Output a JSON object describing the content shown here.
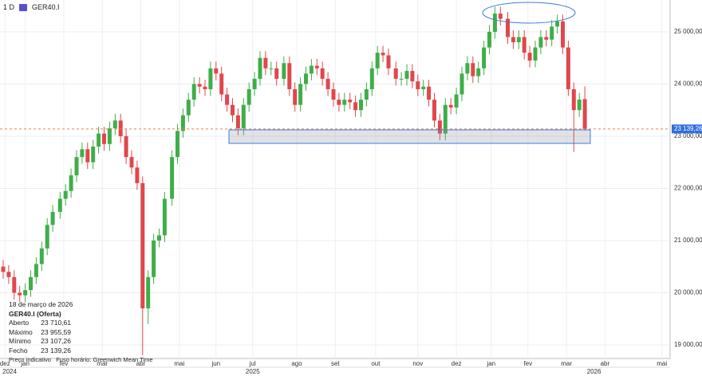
{
  "header": {
    "interval": "1 D",
    "symbol": "GER40.I"
  },
  "info_panel": {
    "date": "18 de março de 2026",
    "title": "GER40.I (Oferta)",
    "rows": [
      {
        "name": "Aberto",
        "label": "23 710,61"
      },
      {
        "name": "Máximo",
        "label": "23 955,59"
      },
      {
        "name": "Mínimo",
        "label": "23 107,26"
      },
      {
        "name": "Fecho",
        "label": "23 139,26"
      }
    ],
    "footer_left": "Preço indicativo",
    "footer_right": "Fuso horário: Greenwich Mean Time"
  },
  "chart_data": {
    "type": "candlestick",
    "up_color": "#3fae49",
    "down_color": "#e0474c",
    "x": [
      0,
      3,
      6,
      9,
      12,
      15,
      18,
      21,
      24,
      27,
      31,
      34,
      37,
      40,
      43,
      46,
      49,
      52,
      55,
      58,
      61,
      64,
      67,
      70,
      73,
      76,
      79,
      82,
      85,
      88,
      92,
      95,
      98,
      101,
      104,
      107,
      110,
      113,
      116,
      119,
      122,
      125,
      128,
      131,
      134,
      137,
      140,
      143,
      146,
      149,
      153,
      156,
      159,
      162,
      165,
      168,
      171,
      174,
      177,
      180,
      183,
      186,
      189,
      192,
      195,
      198,
      201,
      204,
      207,
      210,
      214,
      217,
      220,
      223,
      226,
      229,
      232,
      235,
      238,
      241,
      244,
      247,
      250,
      253,
      256,
      259,
      262,
      265,
      268,
      271,
      275,
      278,
      281,
      284,
      287,
      290,
      293,
      296,
      299,
      302,
      305,
      308,
      311,
      314,
      317
    ],
    "open": [
      20500,
      20400,
      20300,
      20000,
      19950,
      20050,
      20300,
      20550,
      20850,
      21300,
      21550,
      21800,
      21950,
      22250,
      22600,
      22750,
      22500,
      22800,
      23050,
      22850,
      23150,
      23300,
      23000,
      22600,
      22400,
      22100,
      19700,
      20300,
      21000,
      21100,
      21800,
      22600,
      23100,
      23400,
      23700,
      24000,
      23950,
      23900,
      24300,
      24200,
      23800,
      23600,
      23400,
      23150,
      23600,
      23900,
      24100,
      24500,
      24300,
      24300,
      24100,
      24400,
      23900,
      23600,
      24000,
      24200,
      24350,
      24300,
      24100,
      23900,
      23700,
      23600,
      23700,
      23650,
      23500,
      23700,
      23900,
      24300,
      24600,
      24550,
      24300,
      24100,
      24100,
      24250,
      24050,
      23900,
      23950,
      23700,
      23300,
      23050,
      23600,
      23550,
      23800,
      24200,
      24400,
      24150,
      24300,
      24700,
      25000,
      25350,
      25250,
      24900,
      24800,
      24900,
      24600,
      24450,
      24700,
      24900,
      24850,
      25100,
      25200,
      24700,
      23900,
      23500,
      23710.61
    ],
    "high": [
      20630,
      20530,
      20430,
      20130,
      20180,
      20430,
      20680,
      20980,
      21430,
      21680,
      21930,
      22080,
      22380,
      22730,
      22880,
      22880,
      22930,
      23180,
      23180,
      23280,
      23430,
      23430,
      23130,
      22730,
      22530,
      22230,
      20430,
      21130,
      21230,
      21930,
      22730,
      23230,
      23530,
      23830,
      24130,
      24130,
      24080,
      24430,
      24430,
      24330,
      23930,
      23730,
      23530,
      23730,
      24030,
      24230,
      24630,
      24630,
      24430,
      24430,
      24530,
      24530,
      24030,
      24130,
      24330,
      24480,
      24480,
      24430,
      24230,
      24030,
      23830,
      23830,
      23830,
      23780,
      23830,
      24030,
      24430,
      24730,
      24730,
      24680,
      24430,
      24230,
      24380,
      24380,
      24180,
      24080,
      24080,
      23830,
      23430,
      23730,
      23730,
      23930,
      24330,
      24530,
      24530,
      24430,
      24830,
      25130,
      25480,
      25480,
      25380,
      25030,
      25030,
      25030,
      24730,
      24830,
      25030,
      25030,
      25230,
      25330,
      25330,
      24830,
      24030,
      23830,
      23955.59
    ],
    "low": [
      20270,
      20170,
      19870,
      19820,
      19820,
      19920,
      20170,
      20420,
      20720,
      21170,
      21420,
      21670,
      21820,
      22120,
      22470,
      22370,
      22370,
      22670,
      22720,
      22720,
      23020,
      22870,
      22470,
      22270,
      21970,
      18800,
      19400,
      20170,
      20870,
      20970,
      21670,
      22470,
      22970,
      23270,
      23570,
      23820,
      23770,
      23770,
      24070,
      23670,
      23470,
      23270,
      23020,
      23020,
      23470,
      23770,
      23970,
      24170,
      24170,
      23970,
      23970,
      23770,
      23470,
      23470,
      23870,
      24070,
      24170,
      23970,
      23770,
      23570,
      23470,
      23470,
      23520,
      23370,
      23370,
      23570,
      23770,
      24170,
      24420,
      24170,
      23970,
      23970,
      23970,
      23920,
      23770,
      23770,
      23570,
      23170,
      22920,
      22920,
      23420,
      23420,
      23670,
      24070,
      24020,
      24020,
      24170,
      24570,
      24870,
      25120,
      24770,
      24670,
      24670,
      24470,
      24320,
      24320,
      24570,
      24720,
      24720,
      24970,
      24570,
      23770,
      22700,
      23370,
      23107.26
    ],
    "close": [
      20400,
      20300,
      20000,
      19950,
      20050,
      20300,
      20550,
      20850,
      21300,
      21550,
      21800,
      21950,
      22250,
      22600,
      22750,
      22500,
      22800,
      23050,
      22850,
      23150,
      23300,
      23000,
      22600,
      22400,
      22100,
      19700,
      20300,
      21000,
      21100,
      21800,
      22600,
      23100,
      23400,
      23700,
      24000,
      23950,
      23900,
      24300,
      24200,
      23800,
      23600,
      23400,
      23150,
      23600,
      23900,
      24100,
      24500,
      24300,
      24300,
      24100,
      24400,
      23900,
      23600,
      24000,
      24200,
      24350,
      24300,
      24100,
      23900,
      23700,
      23600,
      23700,
      23650,
      23500,
      23700,
      23900,
      24300,
      24600,
      24550,
      24300,
      24100,
      24100,
      24250,
      24050,
      23900,
      23950,
      23700,
      23300,
      23050,
      23600,
      23550,
      23800,
      24200,
      24400,
      24150,
      24300,
      24700,
      25000,
      25350,
      25250,
      24900,
      24800,
      24900,
      24600,
      24450,
      24700,
      24900,
      24850,
      25100,
      25200,
      24700,
      23900,
      23500,
      23700,
      23139.26
    ],
    "xlim": [
      -1.74,
      363.48
    ],
    "xticks": [
      {
        "value": 1,
        "label": "dez"
      },
      {
        "value": 12,
        "label": "jan"
      },
      {
        "value": 33,
        "label": "fev"
      },
      {
        "value": 54,
        "label": "mar"
      },
      {
        "value": 75,
        "label": "abr"
      },
      {
        "value": 96,
        "label": "mai"
      },
      {
        "value": 116,
        "label": "jun"
      },
      {
        "value": 136,
        "label": "jul"
      },
      {
        "value": 160,
        "label": "ago"
      },
      {
        "value": 181,
        "label": "set"
      },
      {
        "value": 203,
        "label": "out"
      },
      {
        "value": 226,
        "label": "nov"
      },
      {
        "value": 247,
        "label": "dez"
      },
      {
        "value": 266,
        "label": "jan"
      },
      {
        "value": 286,
        "label": "fev"
      },
      {
        "value": 307,
        "label": "mar"
      },
      {
        "value": 328,
        "label": "abr"
      },
      {
        "value": 359,
        "label": "mai"
      }
    ],
    "year_ticks": [
      {
        "value": 3.5,
        "label": "2024"
      },
      {
        "value": 136,
        "label": "2025"
      },
      {
        "value": 322,
        "label": "2026"
      }
    ],
    "ylim": [
      18740,
      25610
    ],
    "yticks": [
      {
        "value": 19000,
        "label": "19 000,00"
      },
      {
        "value": 20000,
        "label": "20 000,00"
      },
      {
        "value": 21000,
        "label": "21 000,00"
      },
      {
        "value": 22000,
        "label": "22 000,00"
      },
      {
        "value": 23000,
        "label": "23 000,00"
      },
      {
        "value": 24000,
        "label": "24 000,00"
      },
      {
        "value": 25000,
        "label": "25 000,00"
      }
    ],
    "last_price": {
      "value": 23139.26,
      "label": "23 139,26"
    },
    "grid": true
  }
}
